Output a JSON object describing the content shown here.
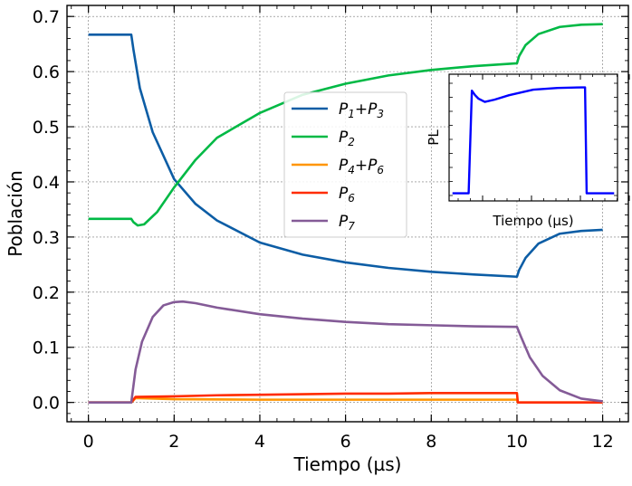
{
  "chart_data": [
    {
      "type": "line",
      "xlabel": "Tiempo (µs)",
      "ylabel": "Población",
      "xlim": [
        -0.5,
        12.6
      ],
      "ylim": [
        -0.035,
        0.72
      ],
      "xticks": [
        "0",
        "2",
        "4",
        "6",
        "8",
        "10",
        "12"
      ],
      "yticks": [
        "0.0",
        "0.1",
        "0.2",
        "0.3",
        "0.4",
        "0.5",
        "0.6",
        "0.7"
      ],
      "grid": true,
      "legend_position": "center-right",
      "series": [
        {
          "name": "P1+P3",
          "name_main": "P",
          "name_sub1": "1",
          "name_op": "+P",
          "name_sub2": "3",
          "color": "#0c5da5",
          "x": [
            0,
            1.0,
            1.05,
            1.2,
            1.5,
            2.0,
            2.5,
            3.0,
            4.0,
            5.0,
            6.0,
            7.0,
            8.0,
            9.0,
            10.0,
            10.05,
            10.2,
            10.5,
            11.0,
            11.5,
            12.0
          ],
          "y": [
            0.667,
            0.667,
            0.64,
            0.57,
            0.49,
            0.405,
            0.36,
            0.33,
            0.29,
            0.268,
            0.254,
            0.244,
            0.237,
            0.232,
            0.228,
            0.24,
            0.262,
            0.288,
            0.306,
            0.311,
            0.313
          ]
        },
        {
          "name": "P2",
          "name_main": "P",
          "name_sub1": "2",
          "color": "#00b945",
          "x": [
            0,
            1.0,
            1.05,
            1.15,
            1.3,
            1.6,
            2.0,
            2.5,
            3.0,
            4.0,
            5.0,
            6.0,
            7.0,
            8.0,
            9.0,
            10.0,
            10.05,
            10.2,
            10.5,
            11.0,
            11.5,
            12.0
          ],
          "y": [
            0.333,
            0.333,
            0.327,
            0.321,
            0.323,
            0.345,
            0.39,
            0.44,
            0.48,
            0.525,
            0.558,
            0.578,
            0.593,
            0.603,
            0.61,
            0.615,
            0.628,
            0.648,
            0.668,
            0.681,
            0.685,
            0.686
          ]
        },
        {
          "name": "P4+P6",
          "name_main": "P",
          "name_sub1": "4",
          "name_op": "+P",
          "name_sub2": "6",
          "color": "#ff9500",
          "x": [
            0,
            1.0,
            1.1,
            2.0,
            4.0,
            6.0,
            8.0,
            10.0,
            10.02,
            12.0
          ],
          "y": [
            0,
            0,
            0.008,
            0.006,
            0.005,
            0.005,
            0.005,
            0.005,
            0.0,
            0.0
          ]
        },
        {
          "name": "P6",
          "name_main": "P",
          "name_sub1": "6",
          "color": "#ff2c00",
          "x": [
            0,
            1.0,
            1.1,
            2.0,
            3.0,
            4.0,
            5.0,
            6.0,
            7.0,
            8.0,
            9.0,
            10.0,
            10.02,
            12.0
          ],
          "y": [
            0,
            0,
            0.01,
            0.011,
            0.013,
            0.014,
            0.015,
            0.016,
            0.016,
            0.017,
            0.017,
            0.017,
            0.0,
            0.0
          ]
        },
        {
          "name": "P7",
          "name_main": "P",
          "name_sub1": "7",
          "color": "#845b97",
          "x": [
            0,
            1.0,
            1.1,
            1.25,
            1.5,
            1.75,
            2.0,
            2.2,
            2.5,
            3.0,
            4.0,
            5.0,
            6.0,
            7.0,
            8.0,
            9.0,
            10.0,
            10.1,
            10.3,
            10.6,
            11.0,
            11.5,
            12.0
          ],
          "y": [
            0,
            0,
            0.06,
            0.11,
            0.155,
            0.176,
            0.182,
            0.183,
            0.18,
            0.172,
            0.16,
            0.152,
            0.146,
            0.142,
            0.14,
            0.138,
            0.137,
            0.118,
            0.082,
            0.048,
            0.022,
            0.007,
            0.002
          ]
        }
      ]
    },
    {
      "type": "line",
      "xlabel": "Tiempo (µs)",
      "ylabel": "PL",
      "series": [
        {
          "color": "#0000ff",
          "x": [
            0,
            0.1,
            0.12,
            0.14,
            0.16,
            0.2,
            0.26,
            0.35,
            0.5,
            0.65,
            0.8,
            0.82,
            0.83,
            1.0
          ],
          "y": [
            0.0,
            0.0,
            0.92,
            0.88,
            0.85,
            0.82,
            0.84,
            0.88,
            0.93,
            0.945,
            0.95,
            0.95,
            0.0,
            0.0
          ]
        }
      ]
    }
  ]
}
